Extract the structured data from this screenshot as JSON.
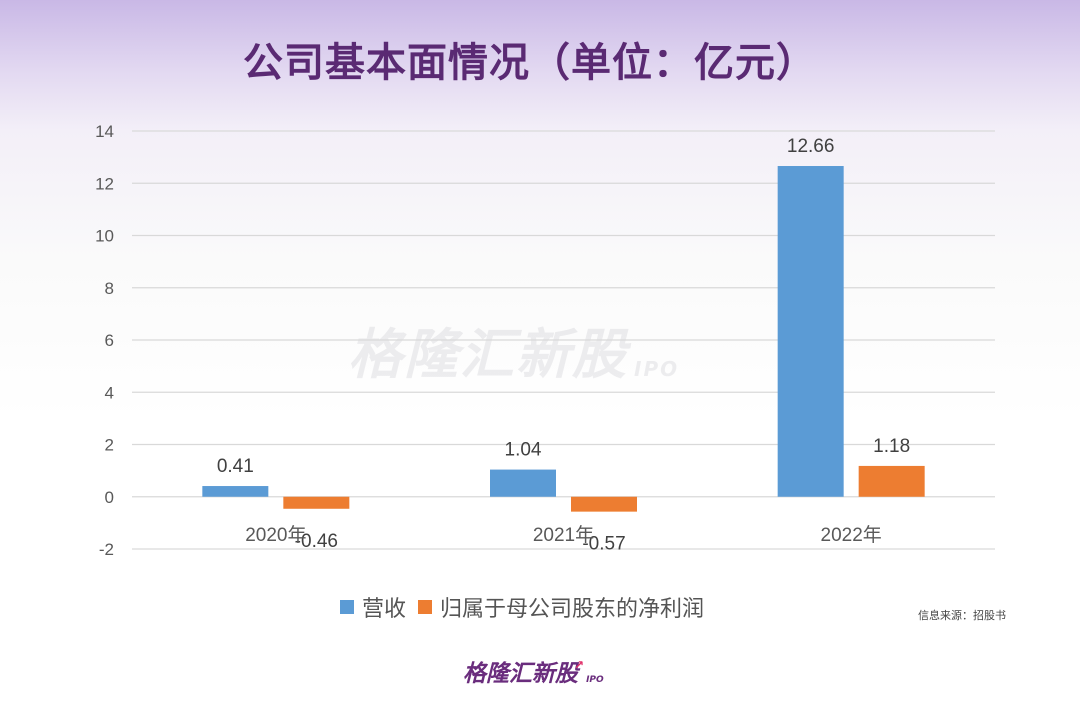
{
  "title": "公司基本面情况（单位：亿元）",
  "source": "信息来源：招股书",
  "brand": {
    "name": "格隆汇新股",
    "suffix": "IPO"
  },
  "watermark": {
    "name": "格隆汇新股",
    "suffix": "IPO"
  },
  "chart_data": {
    "type": "bar",
    "categories": [
      "2020年",
      "2021年",
      "2022年"
    ],
    "series": [
      {
        "name": "营收",
        "values": [
          0.41,
          1.04,
          12.66
        ],
        "labels": [
          "0.41",
          "1.04",
          "12.66"
        ],
        "color": "#5b9bd5"
      },
      {
        "name": "归属于母公司股东的净利润",
        "values": [
          -0.46,
          -0.57,
          1.18
        ],
        "labels": [
          "-0.46",
          "-0.57",
          "1.18"
        ],
        "color": "#ed7d31"
      }
    ],
    "ylim": [
      -2,
      14
    ],
    "yticks": [
      -2,
      0,
      2,
      4,
      6,
      8,
      10,
      12,
      14
    ],
    "grid": true,
    "legend": "bottom"
  }
}
